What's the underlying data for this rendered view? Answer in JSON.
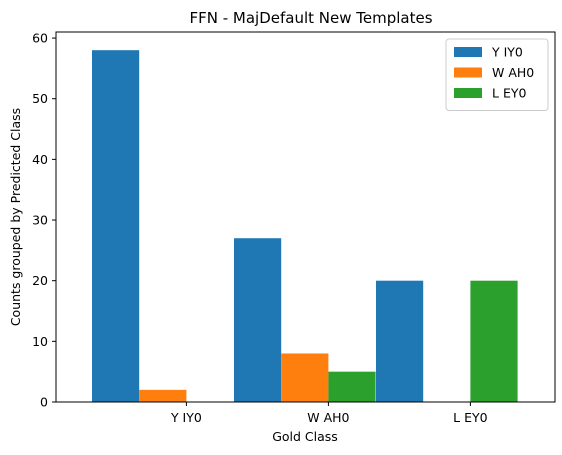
{
  "chart_data": {
    "type": "bar",
    "title": "FFN - MajDefault New Templates",
    "xlabel": "Gold Class",
    "ylabel": "Counts grouped by Predicted Class",
    "categories": [
      "Y IY0",
      "W AH0",
      "L EY0"
    ],
    "series": [
      {
        "name": "Y IY0",
        "color": "#1f77b4",
        "values": [
          58,
          27,
          20
        ]
      },
      {
        "name": "W AH0",
        "color": "#ff7f0e",
        "values": [
          2,
          8,
          0
        ]
      },
      {
        "name": "L EY0",
        "color": "#2ca02c",
        "values": [
          0,
          5,
          20
        ]
      }
    ],
    "ylim": [
      0,
      61
    ],
    "yticks": [
      0,
      10,
      20,
      30,
      40,
      50,
      60
    ],
    "grid": false,
    "legend_position": "top-right"
  }
}
